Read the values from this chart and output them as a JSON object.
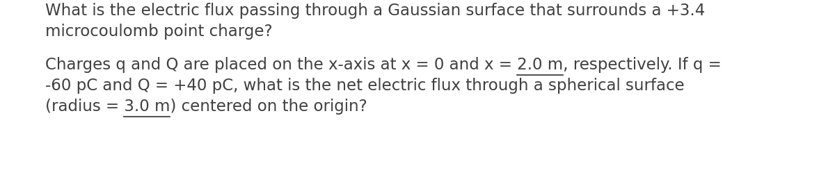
{
  "background_color": "#ffffff",
  "figsize": [
    12.0,
    2.65
  ],
  "dpi": 100,
  "text_color": "#404040",
  "font_size": 16.5,
  "font_family": "sans-serif",
  "q1_line1": "What is the electric flux passing through a Gaussian surface that surrounds a +3.4",
  "q1_line2": "microcoulomb point charge?",
  "q2_line1": "Charges q and Q are placed on the x-axis at x = 0 and x = 2.0 m, respectively. If q =",
  "q2_line2": "-60 pC and Q = +40 pC, what is the net electric flux through a spherical surface",
  "q2_line3": "(radius = 3.0 m) centered on the origin?",
  "underline_color": "#404040",
  "underline_lw": 1.3,
  "underline_segment_q2l1": "2.0 m",
  "underline_prefix_q2l1": "Charges q and Q are placed on the x-axis at x = 0 and x = ",
  "underline_segment_q2l3": "3.0 m",
  "underline_prefix_q2l3": "(radius = "
}
